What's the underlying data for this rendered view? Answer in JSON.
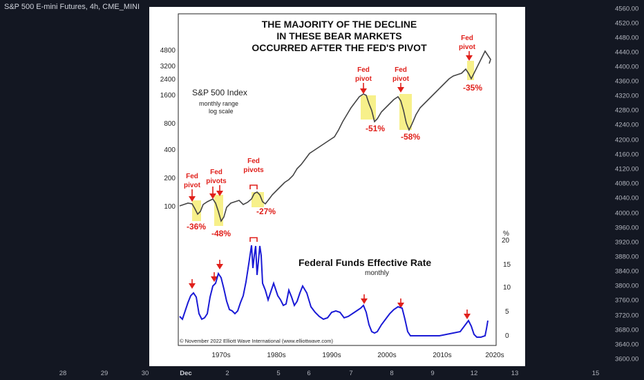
{
  "header": {
    "symbol_title": "S&P 500 E-mini Futures, 4h, CME_MINI"
  },
  "price_axis": {
    "labels": [
      "4560.00",
      "4520.00",
      "4480.00",
      "4440.00",
      "4400.00",
      "4360.00",
      "4320.00",
      "4280.00",
      "4240.00",
      "4200.00",
      "4160.00",
      "4120.00",
      "4080.00",
      "4040.00",
      "4000.00",
      "3960.00",
      "3920.00",
      "3880.00",
      "3840.00",
      "3800.00",
      "3760.00",
      "3720.00",
      "3680.00",
      "3640.00",
      "3600.00"
    ]
  },
  "time_axis": {
    "labels": [
      "28",
      "29",
      "30",
      "Dec",
      "2",
      "5",
      "6",
      "7",
      "8",
      "9",
      "12",
      "13",
      "15"
    ]
  },
  "figure": {
    "title_lines": [
      "THE MAJORITY OF THE DECLINE",
      "IN THESE BEAR MARKETS",
      "OCCURRED AFTER THE FED'S PIVOT"
    ],
    "sp_title": "S&P 500 Index",
    "sp_subtitle_1": "monthly range",
    "sp_subtitle_2": "log scale",
    "ff_title": "Federal Funds Effective Rate",
    "ff_subtitle": "monthly",
    "copyright": "© November 2022 Elliott Wave International (www.elliottwave.com)",
    "left_axis_labels": [
      "4800",
      "3200",
      "2400",
      "1600",
      "800",
      "400",
      "200",
      "100"
    ],
    "right_axis_unit": "%",
    "right_axis_labels": [
      "20",
      "15",
      "10",
      "5",
      "0"
    ],
    "decade_labels": [
      "1970s",
      "1980s",
      "1990s",
      "2000s",
      "2010s",
      "2020s"
    ],
    "annotations": [
      {
        "label_1": "Fed",
        "label_2": "pivot",
        "pct": "-36%"
      },
      {
        "label_1": "Fed",
        "label_2": "pivots",
        "pct": "-48%"
      },
      {
        "label_1": "Fed",
        "label_2": "pivots",
        "pct": "-27%"
      },
      {
        "label_1": "Fed",
        "label_2": "pivot",
        "pct": "-51%"
      },
      {
        "label_1": "Fed",
        "label_2": "pivot",
        "pct": "-58%"
      },
      {
        "label_1": "Fed",
        "label_2": "pivot",
        "pct": "-35%"
      }
    ],
    "colors": {
      "annotation": "#e0201b",
      "highlight": "#f7f08a",
      "sp_line": "#444444",
      "rate_line": "#1a1ad6"
    }
  }
}
